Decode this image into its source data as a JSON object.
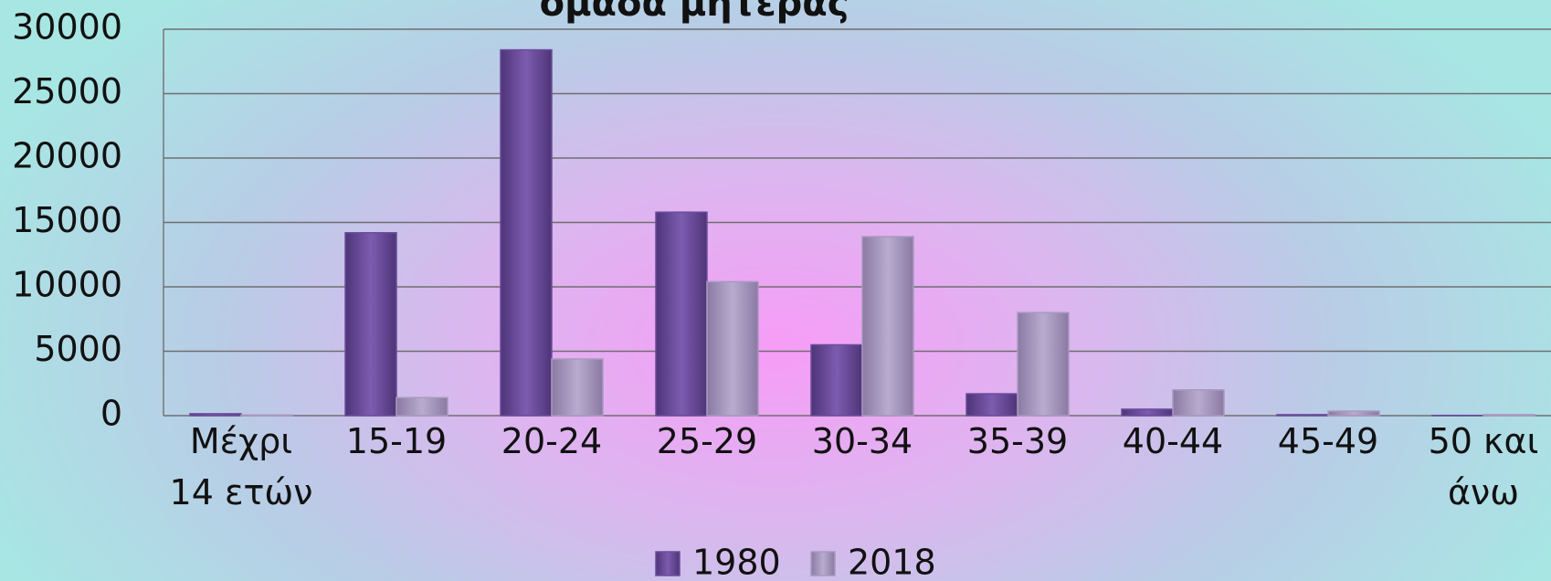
{
  "chart_data": {
    "type": "bar",
    "title": "ομάδα μητέρας",
    "categories": [
      "Μέχρι\n14 ετών",
      "15-19",
      "20-24",
      "25-29",
      "30-34",
      "35-39",
      "40-44",
      "45-49",
      "50 και\nάνω"
    ],
    "series": [
      {
        "name": "1980",
        "color": "#6b4c9c",
        "values": [
          150,
          14200,
          28400,
          15800,
          5500,
          1700,
          500,
          80,
          20
        ]
      },
      {
        "name": "2018",
        "color": "#a999bf",
        "values": [
          50,
          1400,
          4400,
          10400,
          13900,
          8000,
          2000,
          350,
          80
        ]
      }
    ],
    "ylim": [
      0,
      30000
    ],
    "yticks": [
      0,
      5000,
      10000,
      15000,
      20000,
      25000,
      30000
    ],
    "grid": true,
    "legend": "bottom"
  }
}
